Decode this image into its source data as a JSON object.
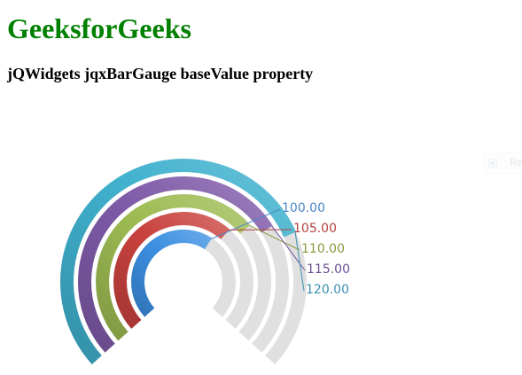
{
  "page": {
    "site_title": "GeeksforGeeks",
    "heading": "jQWidgets jqxBarGauge baseValue property",
    "brand_color": "#008000"
  },
  "toolbar": {
    "faded_button_label": "Re"
  },
  "chart_data": {
    "type": "bar_gauge",
    "title": "",
    "min": 0,
    "max": 160,
    "base_value": 0,
    "track_color": "#e0e0e0",
    "series": [
      {
        "label": "100.00",
        "value": 100,
        "color": "#3c8fe1",
        "label_color": "#4a86c8"
      },
      {
        "label": "105.00",
        "value": 105,
        "color": "#c9423e",
        "label_color": "#b2423e"
      },
      {
        "label": "110.00",
        "value": 110,
        "color": "#9dbb52",
        "label_color": "#8a9a3e"
      },
      {
        "label": "115.00",
        "value": 115,
        "color": "#7f5aa8",
        "label_color": "#6b4f93"
      },
      {
        "label": "120.00",
        "value": 120,
        "color": "#3fb0cd",
        "label_color": "#3a8fb0"
      }
    ]
  }
}
